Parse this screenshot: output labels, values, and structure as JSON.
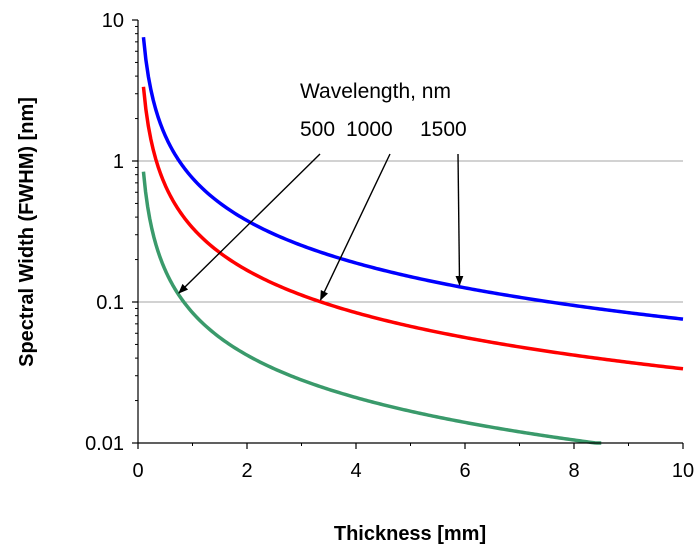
{
  "chart_data": {
    "type": "line",
    "xlabel": "Thickness [mm]",
    "ylabel": "Spectral Width (FWHM) [nm]",
    "xlim": [
      0,
      10
    ],
    "ylim": [
      0.01,
      10
    ],
    "yscale": "log",
    "grid": "horizontal major gridlines at 1 and 0.1",
    "legend": "none",
    "x_ticks": [
      "0",
      "2",
      "4",
      "6",
      "8",
      "10"
    ],
    "x_tick_values": [
      0,
      2,
      4,
      6,
      8,
      10
    ],
    "y_ticks": [
      "0.01",
      "0.1",
      "1",
      "10"
    ],
    "y_tick_values": [
      0.01,
      0.1,
      1,
      10
    ],
    "annotation": {
      "heading": "Wavelength, nm",
      "labels": [
        "500",
        "1000",
        "1500"
      ]
    },
    "series": [
      {
        "color": "#3a9a6b",
        "x": [
          0.1,
          0.2,
          0.3,
          0.5,
          0.75,
          1,
          1.5,
          2,
          3,
          4,
          5,
          6,
          7,
          8,
          8.5
        ],
        "values": [
          0.84,
          0.42,
          0.28,
          0.168,
          0.112,
          0.084,
          0.056,
          0.042,
          0.028,
          0.021,
          0.0168,
          0.014,
          0.012,
          0.0105,
          0.0099
        ]
      },
      {
        "color": "#ff0000",
        "x": [
          0.1,
          0.2,
          0.3,
          0.5,
          0.75,
          1,
          1.5,
          2,
          3,
          4,
          5,
          6,
          7,
          8,
          9,
          10
        ],
        "values": [
          3.36,
          1.68,
          1.12,
          0.672,
          0.448,
          0.336,
          0.224,
          0.168,
          0.112,
          0.084,
          0.0672,
          0.056,
          0.048,
          0.042,
          0.0373,
          0.0336
        ]
      },
      {
        "color": "#0000ff",
        "x": [
          0.1,
          0.2,
          0.3,
          0.5,
          0.75,
          1,
          1.5,
          2,
          3,
          4,
          5,
          6,
          7,
          8,
          9,
          10
        ],
        "values": [
          7.56,
          3.78,
          2.52,
          1.512,
          1.008,
          0.756,
          0.504,
          0.378,
          0.252,
          0.189,
          0.151,
          0.126,
          0.108,
          0.0945,
          0.084,
          0.0756
        ]
      }
    ]
  }
}
